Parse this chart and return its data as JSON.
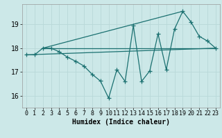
{
  "xlabel": "Humidex (Indice chaleur)",
  "ylabel": "",
  "bg_color": "#cce8e8",
  "line_color": "#1a7070",
  "grid_color": "#b8d8d8",
  "xlim": [
    -0.5,
    23.5
  ],
  "ylim": [
    15.5,
    19.85
  ],
  "xticks": [
    0,
    1,
    2,
    3,
    4,
    5,
    6,
    7,
    8,
    9,
    10,
    11,
    12,
    13,
    14,
    15,
    16,
    17,
    18,
    19,
    20,
    21,
    22,
    23
  ],
  "yticks": [
    16,
    17,
    18,
    19
  ],
  "series1_x": [
    0,
    1,
    2,
    3,
    4,
    5,
    6,
    7,
    8,
    9,
    10,
    11,
    12,
    13,
    14,
    15,
    16,
    17,
    18,
    19,
    20,
    21,
    22,
    23
  ],
  "series1_y": [
    17.72,
    17.72,
    18.0,
    18.0,
    17.85,
    17.62,
    17.45,
    17.25,
    16.9,
    16.62,
    15.9,
    17.1,
    16.6,
    18.95,
    16.6,
    17.05,
    18.6,
    17.1,
    18.8,
    19.55,
    19.1,
    18.5,
    18.3,
    18.0
  ],
  "line1_x": [
    2,
    19
  ],
  "line1_y": [
    18.0,
    19.55
  ],
  "line2_x": [
    2,
    23
  ],
  "line2_y": [
    18.0,
    18.0
  ],
  "line3_x": [
    0,
    23
  ],
  "line3_y": [
    17.72,
    18.0
  ],
  "font_size_label": 7,
  "font_size_tick": 6,
  "marker_size": 2.5,
  "line_width": 0.9
}
